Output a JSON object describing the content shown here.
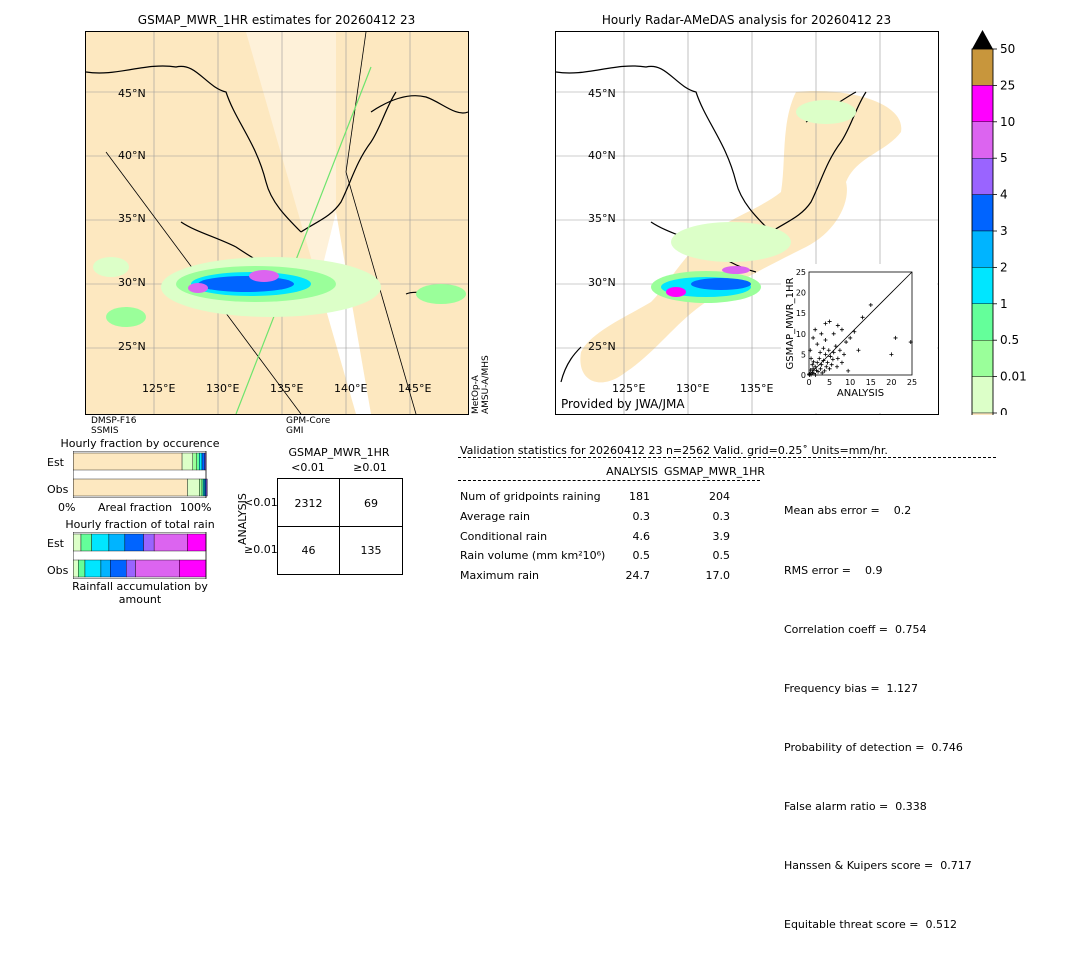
{
  "left_map": {
    "title": "GSMAP_MWR_1HR estimates for 20260412 23",
    "lat_labels": [
      "45°N",
      "40°N",
      "35°N",
      "30°N",
      "25°N"
    ],
    "lon_labels": [
      "125°E",
      "130°E",
      "135°E",
      "140°E",
      "145°E"
    ],
    "sensor_notes": {
      "bottom_left": [
        "DMSP-F16",
        "SSMIS"
      ],
      "bottom_mid": [
        "GPM-Core",
        "GMI"
      ],
      "right_side": [
        "MetOp-A",
        "AMSU-A/MHS"
      ]
    }
  },
  "right_map": {
    "title": "Hourly Radar-AMeDAS analysis for 20260412 23",
    "lat_labels": [
      "45°N",
      "40°N",
      "35°N",
      "30°N",
      "25°N"
    ],
    "lon_labels": [
      "125°E",
      "130°E",
      "135°E"
    ],
    "credit": "Provided by JWA/JMA"
  },
  "colorbar": {
    "labels": [
      "50",
      "25",
      "10",
      "5",
      "4",
      "3",
      "2",
      "1",
      "0.5",
      "0.01",
      "0"
    ],
    "colors": [
      "#c8963c",
      "#ff00ff",
      "#dc64f0",
      "#9a64ff",
      "#0064ff",
      "#00b4ff",
      "#00e6ff",
      "#64ff9a",
      "#9aff9a",
      "#dcffc8",
      "#fde8c0"
    ]
  },
  "chart_data": [
    {
      "type": "scatter",
      "title": "",
      "xlabel": "ANALYSIS",
      "ylabel": "GSMAP_MWR_1HR",
      "xlim": [
        0,
        25
      ],
      "ylim": [
        0,
        25
      ],
      "ticks": [
        "0",
        "5",
        "10",
        "15",
        "20",
        "25"
      ],
      "points": [
        [
          0.2,
          0.3
        ],
        [
          0.5,
          0.1
        ],
        [
          0.8,
          0.6
        ],
        [
          1.0,
          1.5
        ],
        [
          1.2,
          0.4
        ],
        [
          1.5,
          2.0
        ],
        [
          1.8,
          1.1
        ],
        [
          2.0,
          3.0
        ],
        [
          2.2,
          0.8
        ],
        [
          2.5,
          4.0
        ],
        [
          2.8,
          1.5
        ],
        [
          3.0,
          2.5
        ],
        [
          3.2,
          0.5
        ],
        [
          3.5,
          3.5
        ],
        [
          3.8,
          1.0
        ],
        [
          4.0,
          5.0
        ],
        [
          4.2,
          2.0
        ],
        [
          4.5,
          3.0
        ],
        [
          4.8,
          6.0
        ],
        [
          5.0,
          1.5
        ],
        [
          5.2,
          4.5
        ],
        [
          5.5,
          2.5
        ],
        [
          5.8,
          3.8
        ],
        [
          6.0,
          5.5
        ],
        [
          6.5,
          7.0
        ],
        [
          7.0,
          4.0
        ],
        [
          7.5,
          6.0
        ],
        [
          8.0,
          3.0
        ],
        [
          8.5,
          5.0
        ],
        [
          9.0,
          8.0
        ],
        [
          1.0,
          9.0
        ],
        [
          1.5,
          11.0
        ],
        [
          2.0,
          7.5
        ],
        [
          3.0,
          10.0
        ],
        [
          4.0,
          8.5
        ],
        [
          0.5,
          4.0
        ],
        [
          0.3,
          6.0
        ],
        [
          0.8,
          2.5
        ],
        [
          1.1,
          3.2
        ],
        [
          0.4,
          1.2
        ],
        [
          6.0,
          10.0
        ],
        [
          7.0,
          12.0
        ],
        [
          8.0,
          11.0
        ],
        [
          5.0,
          13.0
        ],
        [
          4.0,
          12.5
        ],
        [
          10.0,
          9.0
        ],
        [
          12.0,
          6.0
        ],
        [
          15.0,
          17.0
        ],
        [
          20.0,
          5.0
        ],
        [
          21.0,
          9.0
        ],
        [
          24.7,
          8.0
        ],
        [
          13.0,
          14.0
        ],
        [
          11.0,
          10.5
        ],
        [
          3.5,
          6.5
        ],
        [
          2.7,
          5.5
        ],
        [
          6.8,
          2.0
        ],
        [
          9.5,
          1.0
        ],
        [
          0.1,
          0.0
        ],
        [
          0.0,
          0.2
        ],
        [
          1.6,
          0.0
        ]
      ]
    },
    {
      "type": "bar",
      "title": "Hourly fraction by occurence",
      "categories": [
        "Est",
        "Obs"
      ],
      "xlabel": "Areal fraction",
      "x_tick_left": "0%",
      "x_tick_right": "100%",
      "series": [
        {
          "values": [
            0.82,
            0.86
          ]
        },
        {
          "values": [
            0.08,
            0.09
          ]
        },
        {
          "values": [
            0.03,
            0.02
          ]
        },
        {
          "values": [
            0.02,
            0.01
          ]
        },
        {
          "values": [
            0.02,
            0.01
          ]
        },
        {
          "values": [
            0.02,
            0.008
          ]
        },
        {
          "values": [
            0.01,
            0.012
          ]
        }
      ],
      "colors": [
        "#fde8c0",
        "#dcffc8",
        "#9aff9a",
        "#64ff9a",
        "#00e6ff",
        "#0064ff",
        "#9a64ff"
      ]
    },
    {
      "type": "bar",
      "title": "Hourly fraction of total rain",
      "categories": [
        "Est",
        "Obs"
      ],
      "xlabel": "Rainfall accumulation by amount",
      "series": [
        {
          "values": [
            0.06,
            0.04
          ]
        },
        {
          "values": [
            0.08,
            0.05
          ]
        },
        {
          "values": [
            0.13,
            0.12
          ]
        },
        {
          "values": [
            0.12,
            0.07
          ]
        },
        {
          "values": [
            0.14,
            0.12
          ]
        },
        {
          "values": [
            0.08,
            0.07
          ]
        },
        {
          "values": [
            0.25,
            0.33
          ]
        },
        {
          "values": [
            0.14,
            0.2
          ]
        }
      ],
      "colors": [
        "#dcffc8",
        "#64ff9a",
        "#00e6ff",
        "#00b4ff",
        "#0064ff",
        "#9a64ff",
        "#dc64f0",
        "#ff00ff"
      ]
    },
    {
      "type": "table",
      "title": "GSMAP_MWR_1HR",
      "col_headers": [
        "<0.01",
        "≥0.01"
      ],
      "row_headers": [
        "<0.01",
        "≥0.01"
      ],
      "row_axis_label": "ANALYSIS",
      "cells": [
        [
          "2312",
          "69"
        ],
        [
          "46",
          "135"
        ]
      ]
    }
  ],
  "validation": {
    "header": "Validation statistics for 20260412 23  n=2562 Valid. grid=0.25˚ Units=mm/hr.",
    "col_headers": [
      "ANALYSIS",
      "GSMAP_MWR_1HR"
    ],
    "rows": [
      {
        "label": "Num of gridpoints raining",
        "a": "181",
        "b": "204"
      },
      {
        "label": "Average rain",
        "a": "0.3",
        "b": "0.3"
      },
      {
        "label": "Conditional rain",
        "a": "4.6",
        "b": "3.9"
      },
      {
        "label": "Rain volume (mm km²10⁶)",
        "a": "0.5",
        "b": "0.5"
      },
      {
        "label": "Maximum rain",
        "a": "24.7",
        "b": "17.0"
      }
    ],
    "scores": [
      "Mean abs error =    0.2",
      "RMS error =    0.9",
      "Correlation coeff =  0.754",
      "Frequency bias =  1.127",
      "Probability of detection =  0.746",
      "False alarm ratio =  0.338",
      "Hanssen & Kuipers score =  0.717",
      "Equitable threat score =  0.512"
    ]
  }
}
